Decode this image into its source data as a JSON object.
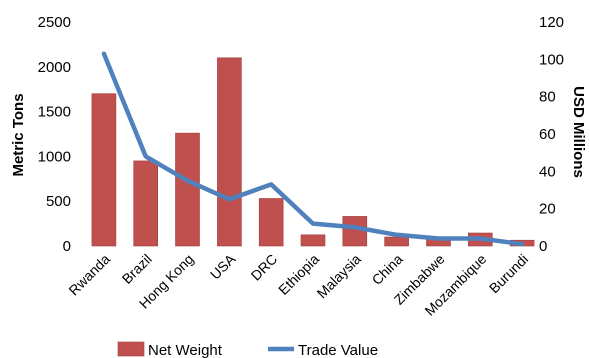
{
  "chart_data": {
    "type": "bar",
    "categories": [
      "Rwanda",
      "Brazil",
      "Hong Kong",
      "USA",
      "DRC",
      "Ethiopia",
      "Malaysia",
      "China",
      "Zimbabwe",
      "Mozambique",
      "Burundi"
    ],
    "series": [
      {
        "name": "Net Weight",
        "type": "bar",
        "axis": "left",
        "color": "#c0504d",
        "values": [
          1700,
          950,
          1260,
          2100,
          530,
          125,
          330,
          100,
          70,
          145,
          65
        ]
      },
      {
        "name": "Trade Value",
        "type": "line",
        "axis": "right",
        "color": "#4f81bd",
        "values": [
          103,
          48,
          35,
          25,
          33,
          12,
          10,
          6,
          4,
          4,
          1
        ]
      }
    ],
    "ylabel": "Metric Tons",
    "y2label": "USD Millions",
    "ylim": [
      0,
      2500
    ],
    "y2lim": [
      0,
      120
    ],
    "yticks": [
      "0",
      "500",
      "1000",
      "1500",
      "2000",
      "2500"
    ],
    "y2ticks": [
      "0",
      "20",
      "40",
      "60",
      "80",
      "100",
      "120"
    ],
    "grid": false,
    "legend_position": "bottom"
  }
}
